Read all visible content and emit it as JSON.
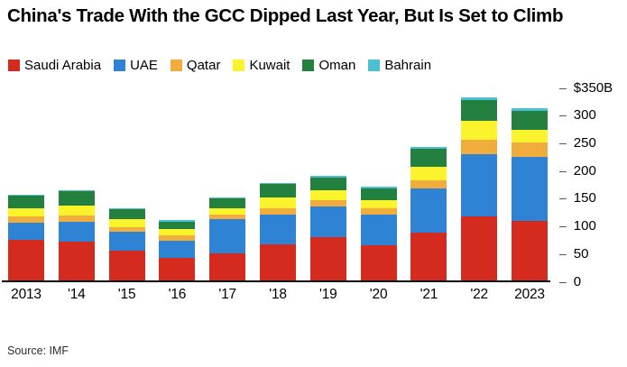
{
  "header": {
    "title": "China's Trade With the GCC Dipped Last Year, But Is Set to Climb"
  },
  "footer": {
    "source": "Source: IMF"
  },
  "chart_data": {
    "type": "bar",
    "stacked": true,
    "title": "China's Trade With the GCC Dipped Last Year, But Is Set to Climb",
    "unit": "billions of USD",
    "categories": [
      "2013",
      "'14",
      "'15",
      "'16",
      "'17",
      "'18",
      "'19",
      "'20",
      "'21",
      "'22",
      "2023"
    ],
    "series": [
      {
        "name": "Saudi Arabia",
        "color": "#d52b1e",
        "values": [
          75,
          72,
          55,
          42,
          50,
          67,
          79,
          65,
          88,
          118,
          109
        ]
      },
      {
        "name": "UAE",
        "color": "#2e83d4",
        "values": [
          31,
          36,
          34,
          32,
          62,
          53,
          56,
          56,
          80,
          111,
          116
        ]
      },
      {
        "name": "Qatar",
        "color": "#f1ad3b",
        "values": [
          11,
          11,
          8,
          9,
          8,
          12,
          11,
          11,
          14,
          27,
          25
        ]
      },
      {
        "name": "Kuwait",
        "color": "#fbf32b",
        "values": [
          15,
          18,
          15,
          11,
          12,
          20,
          19,
          15,
          25,
          33,
          23
        ]
      },
      {
        "name": "Oman",
        "color": "#23803f",
        "values": [
          23,
          26,
          18,
          14,
          18,
          24,
          23,
          21,
          32,
          39,
          35
        ]
      },
      {
        "name": "Bahrain",
        "color": "#4bbfd4",
        "values": [
          2,
          2,
          2,
          2,
          2,
          2,
          3,
          3,
          3,
          4,
          4
        ]
      }
    ],
    "xlabel": "",
    "ylabel": "",
    "ylim": [
      0,
      350
    ],
    "y_ticks": [
      {
        "value": 350,
        "label": "$350B"
      },
      {
        "value": 300,
        "label": "300"
      },
      {
        "value": 250,
        "label": "250"
      },
      {
        "value": 200,
        "label": "200"
      },
      {
        "value": 150,
        "label": "150"
      },
      {
        "value": 100,
        "label": "100"
      },
      {
        "value": 50,
        "label": "50"
      },
      {
        "value": 0,
        "label": "0"
      }
    ],
    "tick_dash": "–",
    "grid": false,
    "legend_position": "top",
    "y_axis_side": "right"
  }
}
